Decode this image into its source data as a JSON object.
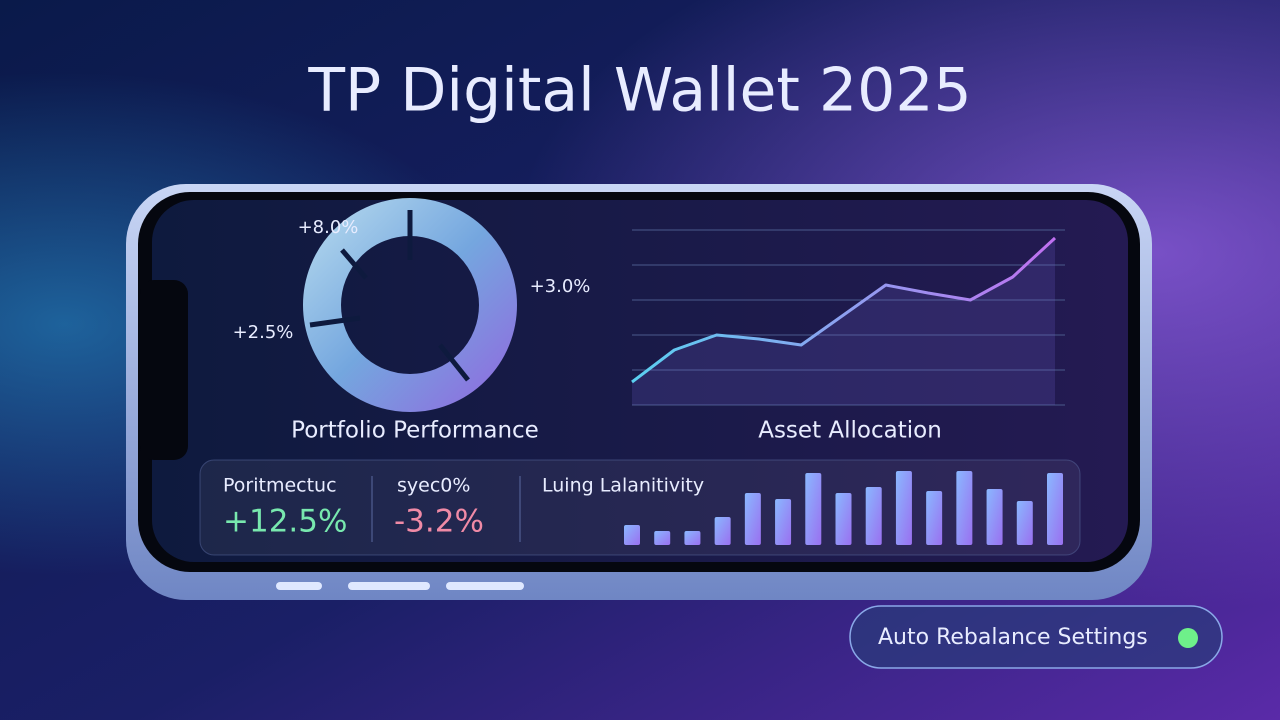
{
  "header": {
    "title": "TP Digital Wallet 2025"
  },
  "donut": {
    "labels": [
      "+8.0%",
      "+3.0%",
      "+2.5%"
    ],
    "caption": "Portfolio Performance"
  },
  "line_chart": {
    "caption": "Asset Allocation",
    "values": [
      23,
      55,
      70,
      66,
      60,
      90,
      120,
      112,
      105,
      128,
      167
    ]
  },
  "stats": [
    {
      "label": "Poritmectuc",
      "value": "+12.5%"
    },
    {
      "label": "syec0%",
      "value": "-3.2%"
    }
  ],
  "bar_chart": {
    "title": "Luing Lalanitivity",
    "values": [
      20,
      14,
      14,
      28,
      52,
      46,
      72,
      52,
      58,
      74,
      54,
      74,
      56,
      44,
      72
    ]
  },
  "button": {
    "label": "Auto Rebalance Settings"
  }
}
